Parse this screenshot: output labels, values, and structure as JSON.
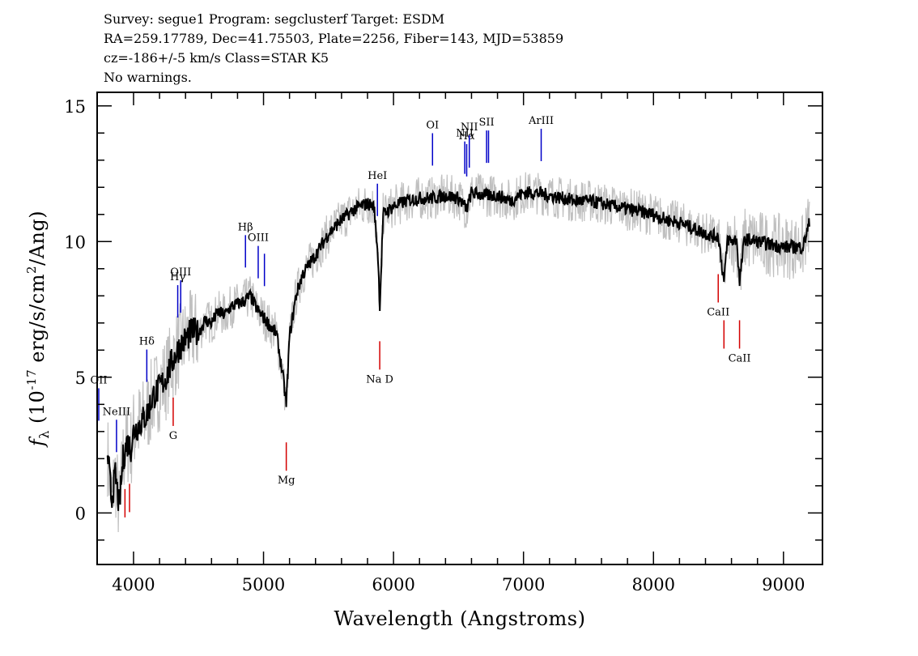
{
  "header": {
    "line1": "Survey: segue1 Program: segclusterf Target: ESDM",
    "line2": "RA=259.17789, Dec=41.75503, Plate=2256, Fiber=143, MJD=53859",
    "line3": "cz=-186+/-5 km/s Class=STAR K5",
    "line4": "No warnings."
  },
  "colors": {
    "spectrum": "#000000",
    "noise": "#c0c0c0",
    "emission_line": "#0000c8",
    "absorption_line": "#d40000"
  },
  "chart_data": {
    "type": "line",
    "xlabel": "Wavelength (Angstroms)",
    "ylabel": "f_λ (10^-17 erg/s/cm^2/Ang)",
    "xlim": [
      3720,
      9300
    ],
    "ylim": [
      -1.9,
      15.5
    ],
    "x_ticks": [
      4000,
      5000,
      6000,
      7000,
      8000,
      9000
    ],
    "y_ticks": [
      0,
      5,
      10,
      15
    ],
    "grid": false,
    "series": [
      {
        "x": [
          3800,
          3830,
          3860,
          3890,
          3920,
          3950,
          3980,
          4000,
          4050,
          4100,
          4150,
          4200,
          4250,
          4300,
          4350,
          4400,
          4450,
          4500,
          4550,
          4600,
          4650,
          4700,
          4750,
          4800,
          4850,
          4900,
          4950,
          5000,
          5050,
          5100,
          5150,
          5175,
          5200,
          5250,
          5300,
          5400,
          5500,
          5600,
          5700,
          5800,
          5850,
          5880,
          5895,
          5920,
          6000,
          6100,
          6200,
          6300,
          6400,
          6500,
          6563,
          6600,
          6700,
          6800,
          6900,
          7000,
          7100,
          7200,
          7300,
          7400,
          7500,
          7600,
          7700,
          7800,
          7900,
          8000,
          8100,
          8200,
          8300,
          8400,
          8450,
          8500,
          8542,
          8570,
          8600,
          8640,
          8662,
          8700,
          8800,
          8900,
          9000,
          9100,
          9150,
          9200
        ],
        "y": [
          2.2,
          0.5,
          1.4,
          0.2,
          2.0,
          2.6,
          2.4,
          3.0,
          3.3,
          3.6,
          4.3,
          4.6,
          5.0,
          5.6,
          6.1,
          6.4,
          6.7,
          6.6,
          7.1,
          7.0,
          7.4,
          7.3,
          7.6,
          7.7,
          7.8,
          8.0,
          7.5,
          7.2,
          6.9,
          6.6,
          5.0,
          4.0,
          6.5,
          8.0,
          8.8,
          9.5,
          10.3,
          10.8,
          11.2,
          11.4,
          11.3,
          9.5,
          7.6,
          11.0,
          11.3,
          11.5,
          11.6,
          11.6,
          11.7,
          11.6,
          11.2,
          11.8,
          11.7,
          11.7,
          11.5,
          11.8,
          11.8,
          11.7,
          11.6,
          11.5,
          11.5,
          11.4,
          11.3,
          11.2,
          11.1,
          11.0,
          10.8,
          10.7,
          10.5,
          10.3,
          10.2,
          10.2,
          8.5,
          10.1,
          10.0,
          10.1,
          8.5,
          10.1,
          10.0,
          9.9,
          9.8,
          9.8,
          9.8,
          10.7
        ]
      }
    ],
    "line_markers": [
      {
        "label": "OII",
        "wavelength": 3727,
        "kind": "emission"
      },
      {
        "label": "NeIII",
        "wavelength": 3869,
        "kind": "emission"
      },
      {
        "label": "Hδ",
        "wavelength": 4102,
        "kind": "emission"
      },
      {
        "label": "Hγ",
        "wavelength": 4340,
        "kind": "emission"
      },
      {
        "label": "OIII",
        "wavelength": 4363,
        "kind": "emission"
      },
      {
        "label": "Hβ",
        "wavelength": 4861,
        "kind": "emission"
      },
      {
        "label": "OIII",
        "wavelength": 4959,
        "kind": "emission"
      },
      {
        "label": "OIII",
        "wavelength": 5007,
        "kind": "emission"
      },
      {
        "label": "HeI",
        "wavelength": 5876,
        "kind": "emission"
      },
      {
        "label": "OI",
        "wavelength": 6300,
        "kind": "emission"
      },
      {
        "label": "NII",
        "wavelength": 6548,
        "kind": "emission"
      },
      {
        "label": "Hα",
        "wavelength": 6563,
        "kind": "emission"
      },
      {
        "label": "NII",
        "wavelength": 6583,
        "kind": "emission"
      },
      {
        "label": "SII",
        "wavelength": 6716,
        "kind": "emission"
      },
      {
        "label": "SII",
        "wavelength": 6731,
        "kind": "emission"
      },
      {
        "label": "ArIII",
        "wavelength": 7136,
        "kind": "emission"
      },
      {
        "label": "G",
        "wavelength": 4305,
        "kind": "absorption"
      },
      {
        "label": "Mg",
        "wavelength": 5175,
        "kind": "absorption"
      },
      {
        "label": "Na D",
        "wavelength": 5894,
        "kind": "absorption"
      },
      {
        "label": "CaII",
        "wavelength": 8498,
        "kind": "absorption"
      },
      {
        "label": "CaII",
        "wavelength": 8542,
        "kind": "absorption"
      },
      {
        "label": "CaII",
        "wavelength": 8662,
        "kind": "absorption"
      },
      {
        "label": "",
        "wavelength": 3934,
        "kind": "absorption"
      },
      {
        "label": "",
        "wavelength": 3969,
        "kind": "absorption"
      }
    ]
  }
}
